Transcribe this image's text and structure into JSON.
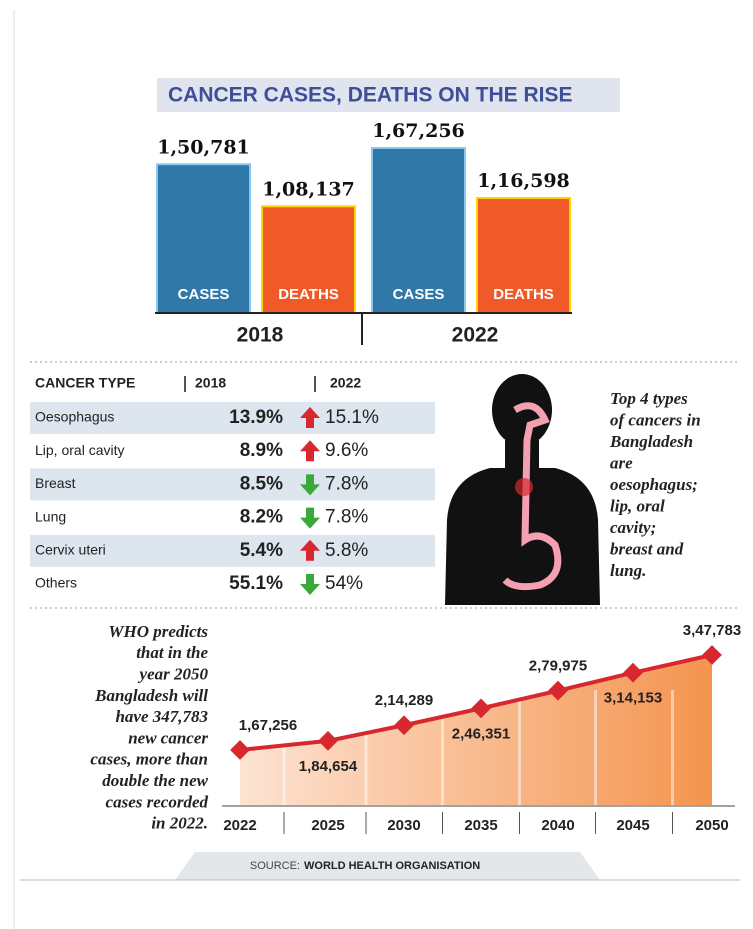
{
  "title": "CANCER CASES, DEATHS ON THE RISE",
  "chart_data": [
    {
      "type": "bar",
      "categories": [
        "2018",
        "2022"
      ],
      "series": [
        {
          "name": "CASES",
          "color": "#2f78a8",
          "values": [
            150781,
            167256
          ],
          "value_labels": [
            "1,50,781",
            "1,67,256"
          ]
        },
        {
          "name": "DEATHS",
          "color": "#f05a28",
          "values": [
            108137,
            116598
          ],
          "value_labels": [
            "1,08,137",
            "1,16,598"
          ]
        }
      ]
    },
    {
      "type": "line",
      "categories": [
        "2022",
        "2025",
        "2030",
        "2035",
        "2040",
        "2045",
        "2050"
      ],
      "values": [
        167256,
        184654,
        214289,
        246351,
        279975,
        314153,
        347783
      ],
      "value_labels": [
        "1,67,256",
        "1,84,654",
        "2,14,289",
        "2,46,351",
        "2,79,975",
        "3,14,153",
        "3,47,783"
      ],
      "color": "#d7282f"
    }
  ],
  "table": {
    "header": [
      "CANCER TYPE",
      "2018",
      "2022"
    ],
    "rows": [
      [
        "Oesophagus",
        "13.9%",
        "15.1%"
      ],
      [
        "Lip, oral cavity",
        "8.9%",
        "9.6%"
      ],
      [
        "Breast",
        "8.5%",
        "7.8%"
      ],
      [
        "Lung",
        "8.2%",
        "7.8%"
      ],
      [
        "Cervix uteri",
        "5.4%",
        "5.8%"
      ],
      [
        "Others",
        "55.1%",
        "54%"
      ]
    ]
  },
  "note": [
    "Top 4 types",
    "of cancers in",
    "Bangladesh",
    "are",
    "oesophagus;",
    "lip, oral",
    "cavity;",
    "breast and",
    "lung."
  ],
  "prediction": [
    "WHO predicts",
    "that in the",
    "year 2050",
    "Bangladesh will",
    "have 347,783",
    "new cancer",
    "cases, more than",
    "double the new",
    "cases recorded",
    "in 2022."
  ],
  "source": {
    "label": "SOURCE:",
    "name": "WORLD HEALTH ORGANISATION"
  }
}
